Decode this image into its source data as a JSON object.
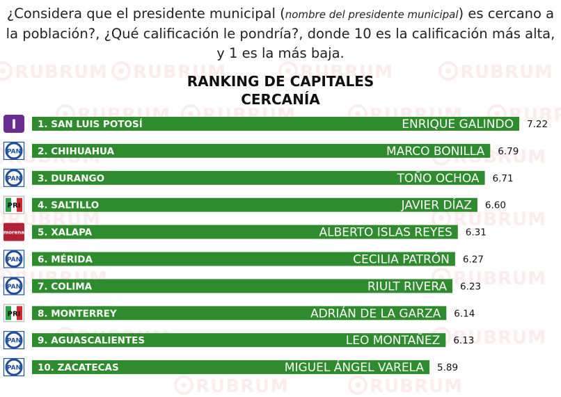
{
  "question": {
    "part1": "¿Considera que el presidente municipal (",
    "note": "nombre del presidente municipal",
    "part2": ") es cercano a la población?, ¿Qué calificación le pondría?, donde 10 es la calificación más alta, y 1 es la más baja."
  },
  "watermark": "RUBRUM",
  "colors": {
    "bar": "#2e8b2e",
    "pan": "#1f4f9c",
    "pri_green": "#2f9e44",
    "pri_red": "#d62828",
    "morena": "#b22234",
    "independent": "#6a2c91"
  },
  "chart_data": {
    "type": "bar",
    "orientation": "horizontal",
    "title": "RANKING DE CAPITALES",
    "subtitle": "CERCANÍA",
    "xlim": [
      0,
      7.22
    ],
    "categories": [
      "1. SAN LUIS POTOSÍ",
      "2. CHIHUAHUA",
      "3. DURANGO",
      "4. SALTILLO",
      "5. XALAPA",
      "6. MÉRIDA",
      "7. COLIMA",
      "8. MONTERREY",
      "9. AGUASCALIENTES",
      "10. ZACATECAS"
    ],
    "names": [
      "ENRIQUE GALINDO",
      "MARCO BONILLA",
      "TOÑO OCHOA",
      "JAVIER DÍAZ",
      "ALBERTO ISLAS REYES",
      "CECILIA PATRÓN",
      "RIULT RIVERA",
      "ADRIÁN DE LA GARZA",
      "LEO MONTAÑEZ",
      "MIGUEL ÁNGEL VARELA"
    ],
    "values": [
      7.22,
      6.79,
      6.71,
      6.6,
      6.31,
      6.27,
      6.23,
      6.14,
      6.13,
      5.89
    ],
    "value_labels": [
      "7.22",
      "6.79",
      "6.71",
      "6.60",
      "6.31",
      "6.27",
      "6.23",
      "6.14",
      "6.13",
      "5.89"
    ],
    "parties": [
      "independent",
      "pan",
      "pan",
      "pri",
      "morena",
      "pan",
      "pan",
      "pri",
      "pan",
      "pan"
    ],
    "party_logo_text": {
      "independent": "I",
      "pan": "PAN",
      "pri": "PRI",
      "morena": "morena"
    }
  }
}
